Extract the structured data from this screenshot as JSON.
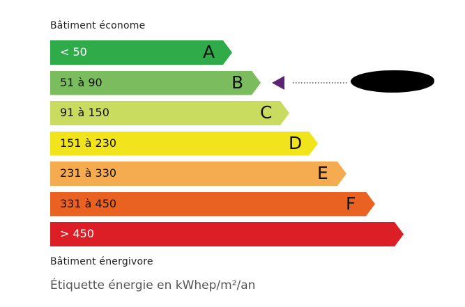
{
  "header_label": "Bâtiment économe",
  "footer_label": "Bâtiment énergivore",
  "caption": "Étiquette énergie en kWhep/m²/an",
  "classes": [
    {
      "range": "< 50",
      "letter": "A",
      "color": "#2fab4a",
      "text_color": "#ffffff"
    },
    {
      "range": "51 à 90",
      "letter": "B",
      "color": "#7bbd5e",
      "text_color": "#111111"
    },
    {
      "range": "91 à 150",
      "letter": "C",
      "color": "#cadc60",
      "text_color": "#111111"
    },
    {
      "range": "151 à 230",
      "letter": "D",
      "color": "#f1e41c",
      "text_color": "#111111"
    },
    {
      "range": "231 à 330",
      "letter": "E",
      "color": "#f5ac50",
      "text_color": "#111111"
    },
    {
      "range": "331 à 450",
      "letter": "F",
      "color": "#ea6221",
      "text_color": "#111111"
    },
    {
      "range": "> 450",
      "letter": "",
      "color": "#dc1f26",
      "text_color": "#ffffff"
    }
  ],
  "indicator": {
    "class": "B",
    "color": "#5b2474"
  }
}
